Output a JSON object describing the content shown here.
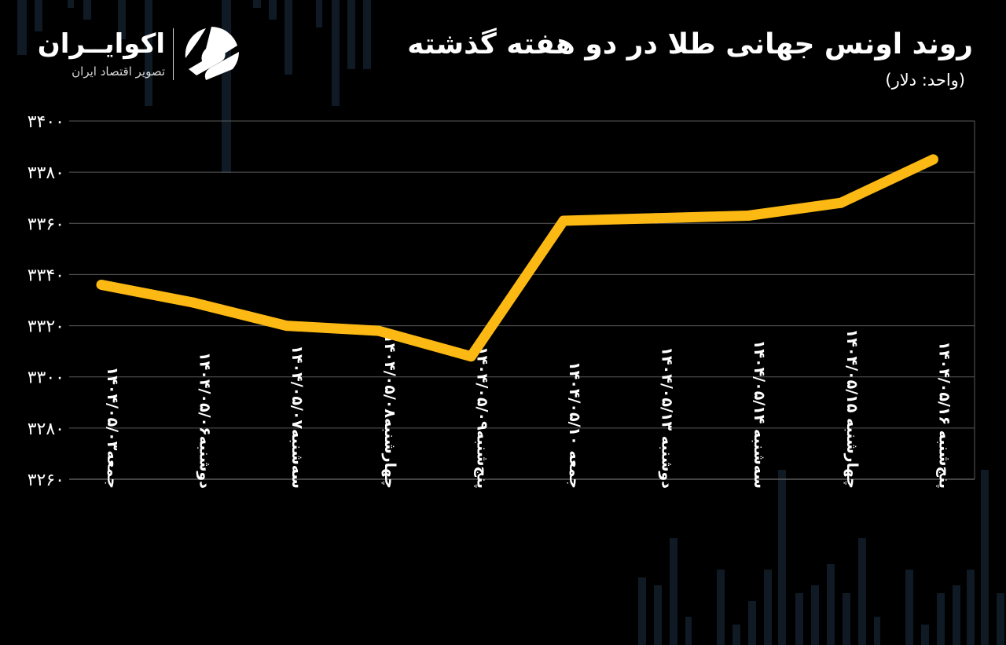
{
  "header": {
    "title": "روند اونس جهانی طلا در دو هفته گذشته",
    "unit": "(واحد: دلار)"
  },
  "logo": {
    "name": "اکوایــران",
    "tagline": "تصویر اقتصاد ایران"
  },
  "colors": {
    "background": "#000000",
    "line": "#FDB913",
    "grid": "#5a5a5a",
    "text": "#ffffff",
    "decor": "#0f1a24"
  },
  "chart_data": {
    "type": "line",
    "title": "روند اونس جهانی طلا در دو هفته گذشته",
    "ylabel": "(واحد: دلار)",
    "xlabel": "",
    "categories": [
      "جمعه۱۴۰۴/۰۵/۰۳",
      "دوشنبه۱۴۰۴/۰۵/۰۶",
      "سه‌شنبه۱۴۰۴/۰۵/۰۷",
      "چهارشنبه۱۴۰۴/۰۵/۰۸",
      "پنج‌شنبه۱۴۰۴/۰۵/۰۹",
      "جمعه ۱۴۰۴/۰۵/۱۰",
      "دوشنبه ۱۴۰۴/۰۵/۱۳",
      "سه‌شنبه ۱۴۰۴/۰۵/۱۴",
      "چهارشنبه ۱۴۰۴/۰۵/۱۵",
      "پنج‌شنبه ۱۴۰۴/۰۵/۱۶"
    ],
    "values": [
      3336,
      3329,
      3320,
      3318,
      3308,
      3361,
      3362,
      3363,
      3368,
      3385
    ],
    "yticks": [
      "۳۲۶۰",
      "۳۲۸۰",
      "۳۳۰۰",
      "۳۳۲۰",
      "۳۳۴۰",
      "۳۳۶۰",
      "۳۳۸۰",
      "۳۴۰۰"
    ],
    "ytick_values": [
      3260,
      3280,
      3300,
      3320,
      3340,
      3360,
      3380,
      3400
    ],
    "ylim": [
      3260,
      3400
    ],
    "grid": true,
    "legend": "none"
  }
}
